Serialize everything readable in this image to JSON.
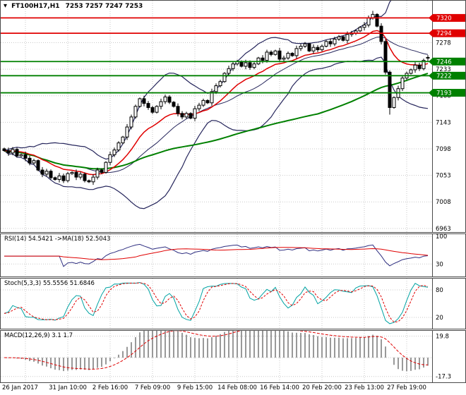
{
  "colors": {
    "background": "#ffffff",
    "grid": "#c9c9c9",
    "border": "#4a4a4a",
    "text": "#000000",
    "badge_text": "#ffffff",
    "candle_up": "#ffffff",
    "candle_down": "#000000",
    "candle_outline": "#000000"
  },
  "chart_data": [
    {
      "type": "candlestick",
      "title_symbol": "FT100H17,H1",
      "title_quote": "7253 7257 7247 7253",
      "symbol": "FT100H17",
      "timeframe": "H1",
      "last_quote": {
        "open": 7253,
        "high": 7257,
        "low": 7247,
        "close": 7253
      },
      "ylim": [
        6958,
        7348
      ],
      "y_ticks": [
        7278,
        7233,
        7188,
        7143,
        7098,
        7053,
        7008,
        6963
      ],
      "x_tick_labels": [
        "26 Jan 2017",
        "31 Jan 10:00",
        "2 Feb 16:00",
        "7 Feb 09:00",
        "9 Feb 15:00",
        "14 Feb 08:00",
        "16 Feb 14:00",
        "20 Feb 20:00",
        "23 Feb 13:00",
        "27 Feb 19:00"
      ],
      "x_tick_indices": [
        5,
        15,
        25,
        35,
        45,
        55,
        65,
        75,
        85,
        95
      ],
      "first_open": 7098,
      "closes": [
        7095,
        7091,
        7097,
        7086,
        7088,
        7082,
        7074,
        7078,
        7062,
        7055,
        7060,
        7049,
        7046,
        7052,
        7044,
        7056,
        7058,
        7050,
        7055,
        7044,
        7042,
        7050,
        7062,
        7058,
        7075,
        7088,
        7096,
        7108,
        7118,
        7135,
        7152,
        7170,
        7183,
        7175,
        7168,
        7160,
        7170,
        7178,
        7186,
        7177,
        7170,
        7158,
        7152,
        7158,
        7150,
        7166,
        7172,
        7180,
        7176,
        7195,
        7205,
        7212,
        7226,
        7234,
        7242,
        7246,
        7238,
        7244,
        7236,
        7242,
        7252,
        7248,
        7262,
        7258,
        7264,
        7250,
        7252,
        7260,
        7256,
        7268,
        7272,
        7276,
        7264,
        7270,
        7266,
        7272,
        7280,
        7276,
        7284,
        7288,
        7282,
        7292,
        7294,
        7298,
        7304,
        7308,
        7320,
        7326,
        7306,
        7280,
        7228,
        7168,
        7185,
        7200,
        7218,
        7226,
        7232,
        7240,
        7234,
        7248,
        7253
      ],
      "spike_high": {
        "index": 87,
        "value": 7332
      },
      "spike_low": {
        "index": 91,
        "value": 7156
      },
      "levels": [
        {
          "price": 7320,
          "color": "#e00000"
        },
        {
          "price": 7294,
          "color": "#e00000"
        },
        {
          "price": 7246,
          "color": "#008000"
        },
        {
          "price": 7222,
          "color": "#008000"
        },
        {
          "price": 7193,
          "color": "#008000"
        }
      ],
      "overlays": {
        "bollinger": {
          "period": 20,
          "deviation": 2,
          "color": "#26265c"
        },
        "ma_fast": {
          "type": "ema",
          "period": 13,
          "color": "#e00000"
        },
        "ma_slow": {
          "type": "sma",
          "period": 75,
          "color": "#008000"
        }
      }
    },
    {
      "type": "line",
      "name": "RSI",
      "label": "RSI(14) 54.5421 ->MA(18) 52.5043",
      "period": 14,
      "ma_period": 18,
      "value": 54.5421,
      "ma_value": 52.5043,
      "ylim": [
        0,
        104
      ],
      "y_ticks": [
        100,
        30
      ],
      "colors": {
        "rsi": "#2e2e80",
        "ma": "#e00000"
      }
    },
    {
      "type": "line",
      "name": "Stochastic",
      "label": "Stoch(5,3,3) 55.5556 51.6846",
      "k_period": 5,
      "d_period": 3,
      "slowing": 3,
      "k_value": 55.5556,
      "d_value": 51.6846,
      "ylim": [
        -3,
        103
      ],
      "y_ticks": [
        80,
        20
      ],
      "colors": {
        "k": "#00a3a3",
        "d": "#e00000"
      }
    },
    {
      "type": "histogram",
      "name": "MACD",
      "label": "MACD(12,26,9) 3.1 1.7",
      "fast": 12,
      "slow": 26,
      "signal": 9,
      "macd_value": 3.1,
      "signal_value": 1.7,
      "ylim": [
        -22,
        24
      ],
      "y_ticks": [
        19.8,
        -17.3
      ],
      "colors": {
        "histogram": "#999999",
        "signal": "#e00000"
      }
    }
  ]
}
